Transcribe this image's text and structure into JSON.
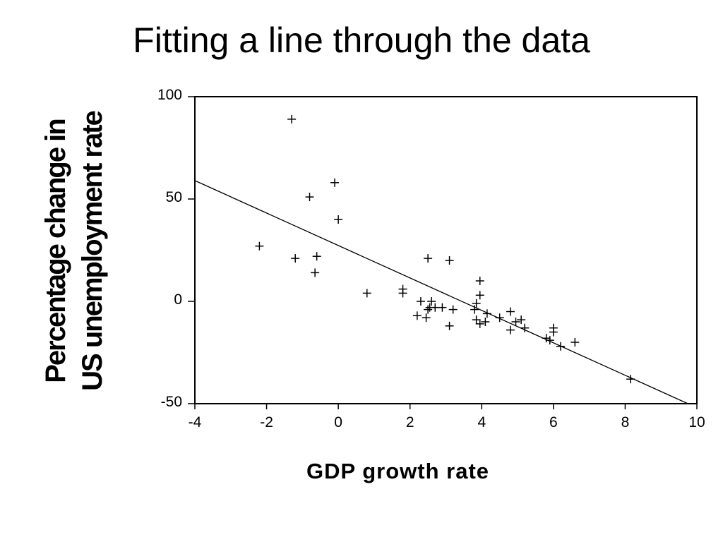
{
  "slide": {
    "title": "Fitting a line through the data"
  },
  "chart_data": {
    "type": "scatter",
    "title": "",
    "xlabel": "GDP growth rate",
    "ylabel_lines": [
      "Percentage change in",
      "US unemployment rate"
    ],
    "xlim": [
      -4,
      10
    ],
    "ylim": [
      -50,
      100
    ],
    "xticks": [
      -4,
      -2,
      0,
      2,
      4,
      6,
      8,
      10
    ],
    "yticks": [
      -50,
      0,
      50,
      100
    ],
    "grid": false,
    "marker": "+",
    "points": [
      [
        -1.3,
        89
      ],
      [
        -0.1,
        58
      ],
      [
        -0.8,
        51
      ],
      [
        0.0,
        40
      ],
      [
        -2.2,
        27
      ],
      [
        -1.2,
        21
      ],
      [
        -0.6,
        22
      ],
      [
        -0.65,
        14
      ],
      [
        0.8,
        4
      ],
      [
        1.8,
        6
      ],
      [
        1.8,
        4
      ],
      [
        2.5,
        21
      ],
      [
        3.1,
        20
      ],
      [
        3.95,
        10
      ],
      [
        3.95,
        3
      ],
      [
        2.3,
        0
      ],
      [
        2.6,
        0
      ],
      [
        2.7,
        -3
      ],
      [
        2.9,
        -3
      ],
      [
        2.5,
        -4
      ],
      [
        2.55,
        -3
      ],
      [
        3.2,
        -4
      ],
      [
        3.85,
        -1
      ],
      [
        3.8,
        -4
      ],
      [
        2.2,
        -7
      ],
      [
        2.45,
        -8
      ],
      [
        3.1,
        -12
      ],
      [
        3.85,
        -9
      ],
      [
        3.95,
        -11
      ],
      [
        4.1,
        -10
      ],
      [
        4.15,
        -6
      ],
      [
        4.5,
        -8
      ],
      [
        4.8,
        -5
      ],
      [
        4.95,
        -10
      ],
      [
        5.1,
        -9
      ],
      [
        4.8,
        -14
      ],
      [
        5.2,
        -13
      ],
      [
        5.8,
        -18
      ],
      [
        5.9,
        -19
      ],
      [
        6.0,
        -15
      ],
      [
        6.0,
        -13
      ],
      [
        6.2,
        -22
      ],
      [
        6.6,
        -20
      ],
      [
        8.15,
        -38
      ]
    ],
    "fit_line": {
      "from": [
        -4,
        59
      ],
      "to": [
        9.75,
        -50
      ]
    },
    "colors": {
      "axis": "#000000",
      "marker": "#000000",
      "line": "#000000"
    }
  }
}
